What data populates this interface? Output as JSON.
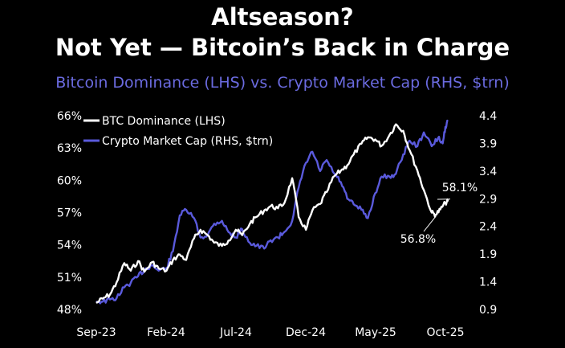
{
  "chart_data": {
    "type": "line",
    "title_line1": "Altseason?",
    "title_line2": "Not Yet — Bitcoin’s Back in Charge",
    "subtitle": "Bitcoin Dominance (LHS) vs. Crypto Market Cap (RHS, $trn)",
    "x_tick_labels": [
      "Sep-23",
      "Feb-24",
      "Jul-24",
      "Dec-24",
      "May-25",
      "Oct-25"
    ],
    "left_axis": {
      "tick_labels": [
        "48%",
        "51%",
        "54%",
        "57%",
        "60%",
        "63%",
        "66%"
      ],
      "tick_values": [
        48,
        51,
        54,
        57,
        60,
        63,
        66
      ],
      "range": [
        48,
        66
      ]
    },
    "right_axis": {
      "tick_labels": [
        "0.9",
        "1.4",
        "1.9",
        "2.4",
        "2.9",
        "3.4",
        "3.9",
        "4.4"
      ],
      "tick_values": [
        0.9,
        1.4,
        1.9,
        2.4,
        2.9,
        3.4,
        3.9,
        4.4
      ],
      "range": [
        0.9,
        4.4
      ]
    },
    "legend_placement": "top-left",
    "grid": false,
    "series": [
      {
        "name": "BTC Dominance (LHS)",
        "color": "#ffffff",
        "axis": "left",
        "points": [
          [
            "2023-09-01",
            48.6
          ],
          [
            "2023-09-15",
            49.0
          ],
          [
            "2023-10-01",
            49.4
          ],
          [
            "2023-10-15",
            50.5
          ],
          [
            "2023-11-01",
            52.3
          ],
          [
            "2023-11-15",
            51.6
          ],
          [
            "2023-12-01",
            52.5
          ],
          [
            "2023-12-15",
            51.5
          ],
          [
            "2024-01-01",
            52.4
          ],
          [
            "2024-01-15",
            51.8
          ],
          [
            "2024-02-01",
            51.6
          ],
          [
            "2024-02-15",
            52.6
          ],
          [
            "2024-03-01",
            53.1
          ],
          [
            "2024-03-15",
            52.6
          ],
          [
            "2024-04-01",
            54.6
          ],
          [
            "2024-04-15",
            55.4
          ],
          [
            "2024-05-01",
            54.9
          ],
          [
            "2024-05-15",
            54.2
          ],
          [
            "2024-06-01",
            53.9
          ],
          [
            "2024-06-15",
            54.4
          ],
          [
            "2024-07-01",
            55.4
          ],
          [
            "2024-07-15",
            54.9
          ],
          [
            "2024-08-01",
            56.0
          ],
          [
            "2024-08-15",
            56.6
          ],
          [
            "2024-09-01",
            57.2
          ],
          [
            "2024-09-15",
            57.6
          ],
          [
            "2024-10-01",
            57.4
          ],
          [
            "2024-10-15",
            57.9
          ],
          [
            "2024-11-01",
            60.2
          ],
          [
            "2024-11-15",
            56.6
          ],
          [
            "2024-12-01",
            55.4
          ],
          [
            "2024-12-15",
            57.2
          ],
          [
            "2025-01-01",
            57.8
          ],
          [
            "2025-01-15",
            58.9
          ],
          [
            "2025-02-01",
            60.4
          ],
          [
            "2025-02-15",
            60.9
          ],
          [
            "2025-03-01",
            61.4
          ],
          [
            "2025-03-15",
            62.4
          ],
          [
            "2025-04-01",
            63.4
          ],
          [
            "2025-04-15",
            64.0
          ],
          [
            "2025-05-01",
            63.8
          ],
          [
            "2025-05-15",
            63.2
          ],
          [
            "2025-06-01",
            64.2
          ],
          [
            "2025-06-15",
            65.2
          ],
          [
            "2025-07-01",
            64.6
          ],
          [
            "2025-07-15",
            62.8
          ],
          [
            "2025-08-01",
            60.9
          ],
          [
            "2025-08-15",
            59.1
          ],
          [
            "2025-09-01",
            57.0
          ],
          [
            "2025-09-10",
            56.8
          ],
          [
            "2025-09-20",
            57.3
          ],
          [
            "2025-10-01",
            57.9
          ],
          [
            "2025-10-08",
            58.1
          ]
        ]
      },
      {
        "name": "Crypto Market Cap (RHS, $trn)",
        "color": "#5a5adc",
        "axis": "right",
        "points": [
          [
            "2023-09-01",
            1.05
          ],
          [
            "2023-09-15",
            1.04
          ],
          [
            "2023-10-01",
            1.08
          ],
          [
            "2023-10-15",
            1.1
          ],
          [
            "2023-11-01",
            1.3
          ],
          [
            "2023-11-15",
            1.38
          ],
          [
            "2023-12-01",
            1.5
          ],
          [
            "2023-12-15",
            1.62
          ],
          [
            "2024-01-01",
            1.7
          ],
          [
            "2024-01-15",
            1.6
          ],
          [
            "2024-02-01",
            1.65
          ],
          [
            "2024-02-15",
            1.95
          ],
          [
            "2024-03-01",
            2.6
          ],
          [
            "2024-03-15",
            2.7
          ],
          [
            "2024-04-01",
            2.55
          ],
          [
            "2024-04-15",
            2.2
          ],
          [
            "2024-05-01",
            2.25
          ],
          [
            "2024-05-15",
            2.45
          ],
          [
            "2024-06-01",
            2.5
          ],
          [
            "2024-06-15",
            2.3
          ],
          [
            "2024-07-01",
            2.2
          ],
          [
            "2024-07-15",
            2.35
          ],
          [
            "2024-08-01",
            2.1
          ],
          [
            "2024-08-15",
            2.05
          ],
          [
            "2024-09-01",
            2.0
          ],
          [
            "2024-09-15",
            2.15
          ],
          [
            "2024-10-01",
            2.2
          ],
          [
            "2024-10-15",
            2.3
          ],
          [
            "2024-11-01",
            2.5
          ],
          [
            "2024-11-15",
            3.1
          ],
          [
            "2024-12-01",
            3.55
          ],
          [
            "2024-12-15",
            3.75
          ],
          [
            "2025-01-01",
            3.4
          ],
          [
            "2025-01-15",
            3.6
          ],
          [
            "2025-02-01",
            3.35
          ],
          [
            "2025-02-15",
            3.2
          ],
          [
            "2025-03-01",
            2.9
          ],
          [
            "2025-03-15",
            2.8
          ],
          [
            "2025-04-01",
            2.7
          ],
          [
            "2025-04-15",
            2.55
          ],
          [
            "2025-05-01",
            3.0
          ],
          [
            "2025-05-15",
            3.3
          ],
          [
            "2025-06-01",
            3.3
          ],
          [
            "2025-06-15",
            3.35
          ],
          [
            "2025-07-01",
            3.7
          ],
          [
            "2025-07-15",
            3.95
          ],
          [
            "2025-08-01",
            3.85
          ],
          [
            "2025-08-15",
            4.1
          ],
          [
            "2025-09-01",
            3.85
          ],
          [
            "2025-09-15",
            4.0
          ],
          [
            "2025-09-25",
            3.9
          ],
          [
            "2025-10-01",
            4.2
          ],
          [
            "2025-10-06",
            4.3
          ]
        ]
      }
    ],
    "annotations": [
      {
        "text": "58.1%",
        "date": "2025-10-08",
        "value": 58.1
      },
      {
        "text": "56.8%",
        "date": "2025-09-10",
        "value": 56.8
      }
    ]
  }
}
